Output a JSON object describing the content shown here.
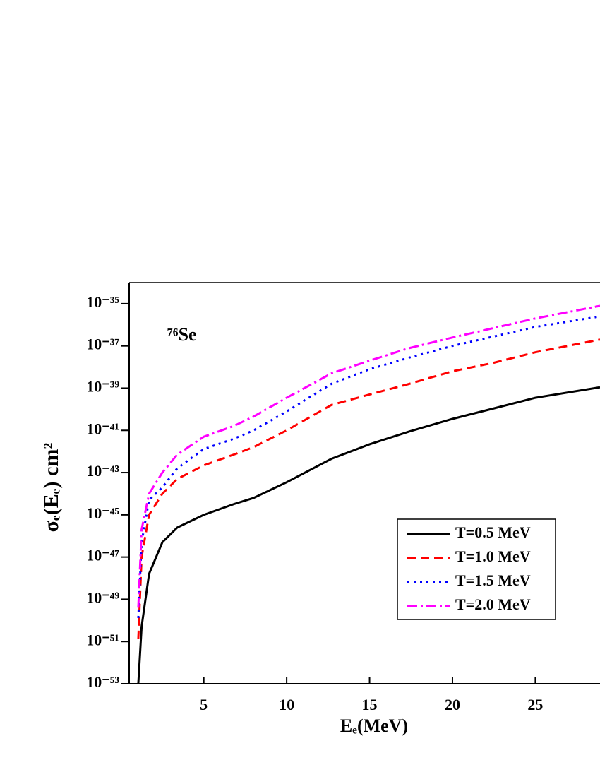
{
  "chart_data": {
    "type": "line",
    "annotation": "⁷⁶Se",
    "x_label": "Eₑ(MeV)",
    "y_label": "σₑ(Eₑ) cm²",
    "y_log": true,
    "legend": "lower right",
    "xlim": [
      0.5,
      28.9
    ],
    "xticks": [
      5,
      10,
      15,
      20,
      25
    ],
    "ylim": [
      1e-53,
      1e-34
    ],
    "yticks": [
      {
        "value": 1e-35,
        "label": "10⁻³⁵"
      },
      {
        "value": 1e-37,
        "label": "10⁻³⁷"
      },
      {
        "value": 1e-39,
        "label": "10⁻³⁹"
      },
      {
        "value": 1e-41,
        "label": "10⁻⁴¹"
      },
      {
        "value": 1e-43,
        "label": "10⁻⁴³"
      },
      {
        "value": 1e-45,
        "label": "10⁻⁴⁵"
      },
      {
        "value": 1e-47,
        "label": "10⁻⁴⁷"
      },
      {
        "value": 1e-49,
        "label": "10⁻⁴⁹"
      },
      {
        "value": 1e-51,
        "label": "10⁻⁵¹"
      },
      {
        "value": 1e-53,
        "label": "10⁻⁵³"
      }
    ],
    "x": [
      1.05,
      1.25,
      1.7,
      2.5,
      3.4,
      5,
      6.8,
      8,
      10,
      12.7,
      15,
      17.4,
      20,
      22.5,
      25,
      28.9
    ],
    "series": [
      {
        "name": "T=0.5 MeV",
        "color": "#000000",
        "dash": "solid",
        "values": [
          1e-53,
          5e-51,
          1.6e-48,
          5e-47,
          2.5e-46,
          1e-45,
          3.2e-45,
          6.3e-45,
          3.5e-44,
          4.5e-43,
          2.2e-42,
          8.9e-42,
          3.5e-41,
          1.1e-40,
          3.5e-40,
          1.1e-39
        ]
      },
      {
        "name": "T=1.0 MeV",
        "color": "#ff0000",
        "dash": "dashed",
        "values": [
          1.3e-51,
          1e-47,
          1e-45,
          1e-44,
          5e-44,
          2.2e-43,
          7.1e-43,
          1.6e-42,
          1e-41,
          1.6e-40,
          5e-40,
          1.6e-39,
          6.3e-39,
          1.6e-38,
          5e-38,
          2e-37
        ]
      },
      {
        "name": "T=1.5 MeV",
        "color": "#0000ff",
        "dash": "dotted",
        "values": [
          1.3e-50,
          5e-47,
          5e-45,
          2e-44,
          1.6e-43,
          1.3e-42,
          4e-42,
          1e-41,
          7.9e-41,
          1.6e-39,
          7.9e-39,
          2.8e-38,
          1e-37,
          2.8e-37,
          7.9e-37,
          2.5e-36
        ]
      },
      {
        "name": "T=2.0 MeV",
        "color": "#ff00ff",
        "dash": "dashdot",
        "values": [
          4e-50,
          2e-46,
          1e-44,
          1e-43,
          7.1e-43,
          5e-42,
          1.6e-41,
          4.5e-41,
          3.5e-40,
          5e-39,
          2e-38,
          7.9e-38,
          2.5e-37,
          7.1e-37,
          2e-36,
          7.9e-36
        ]
      }
    ]
  }
}
